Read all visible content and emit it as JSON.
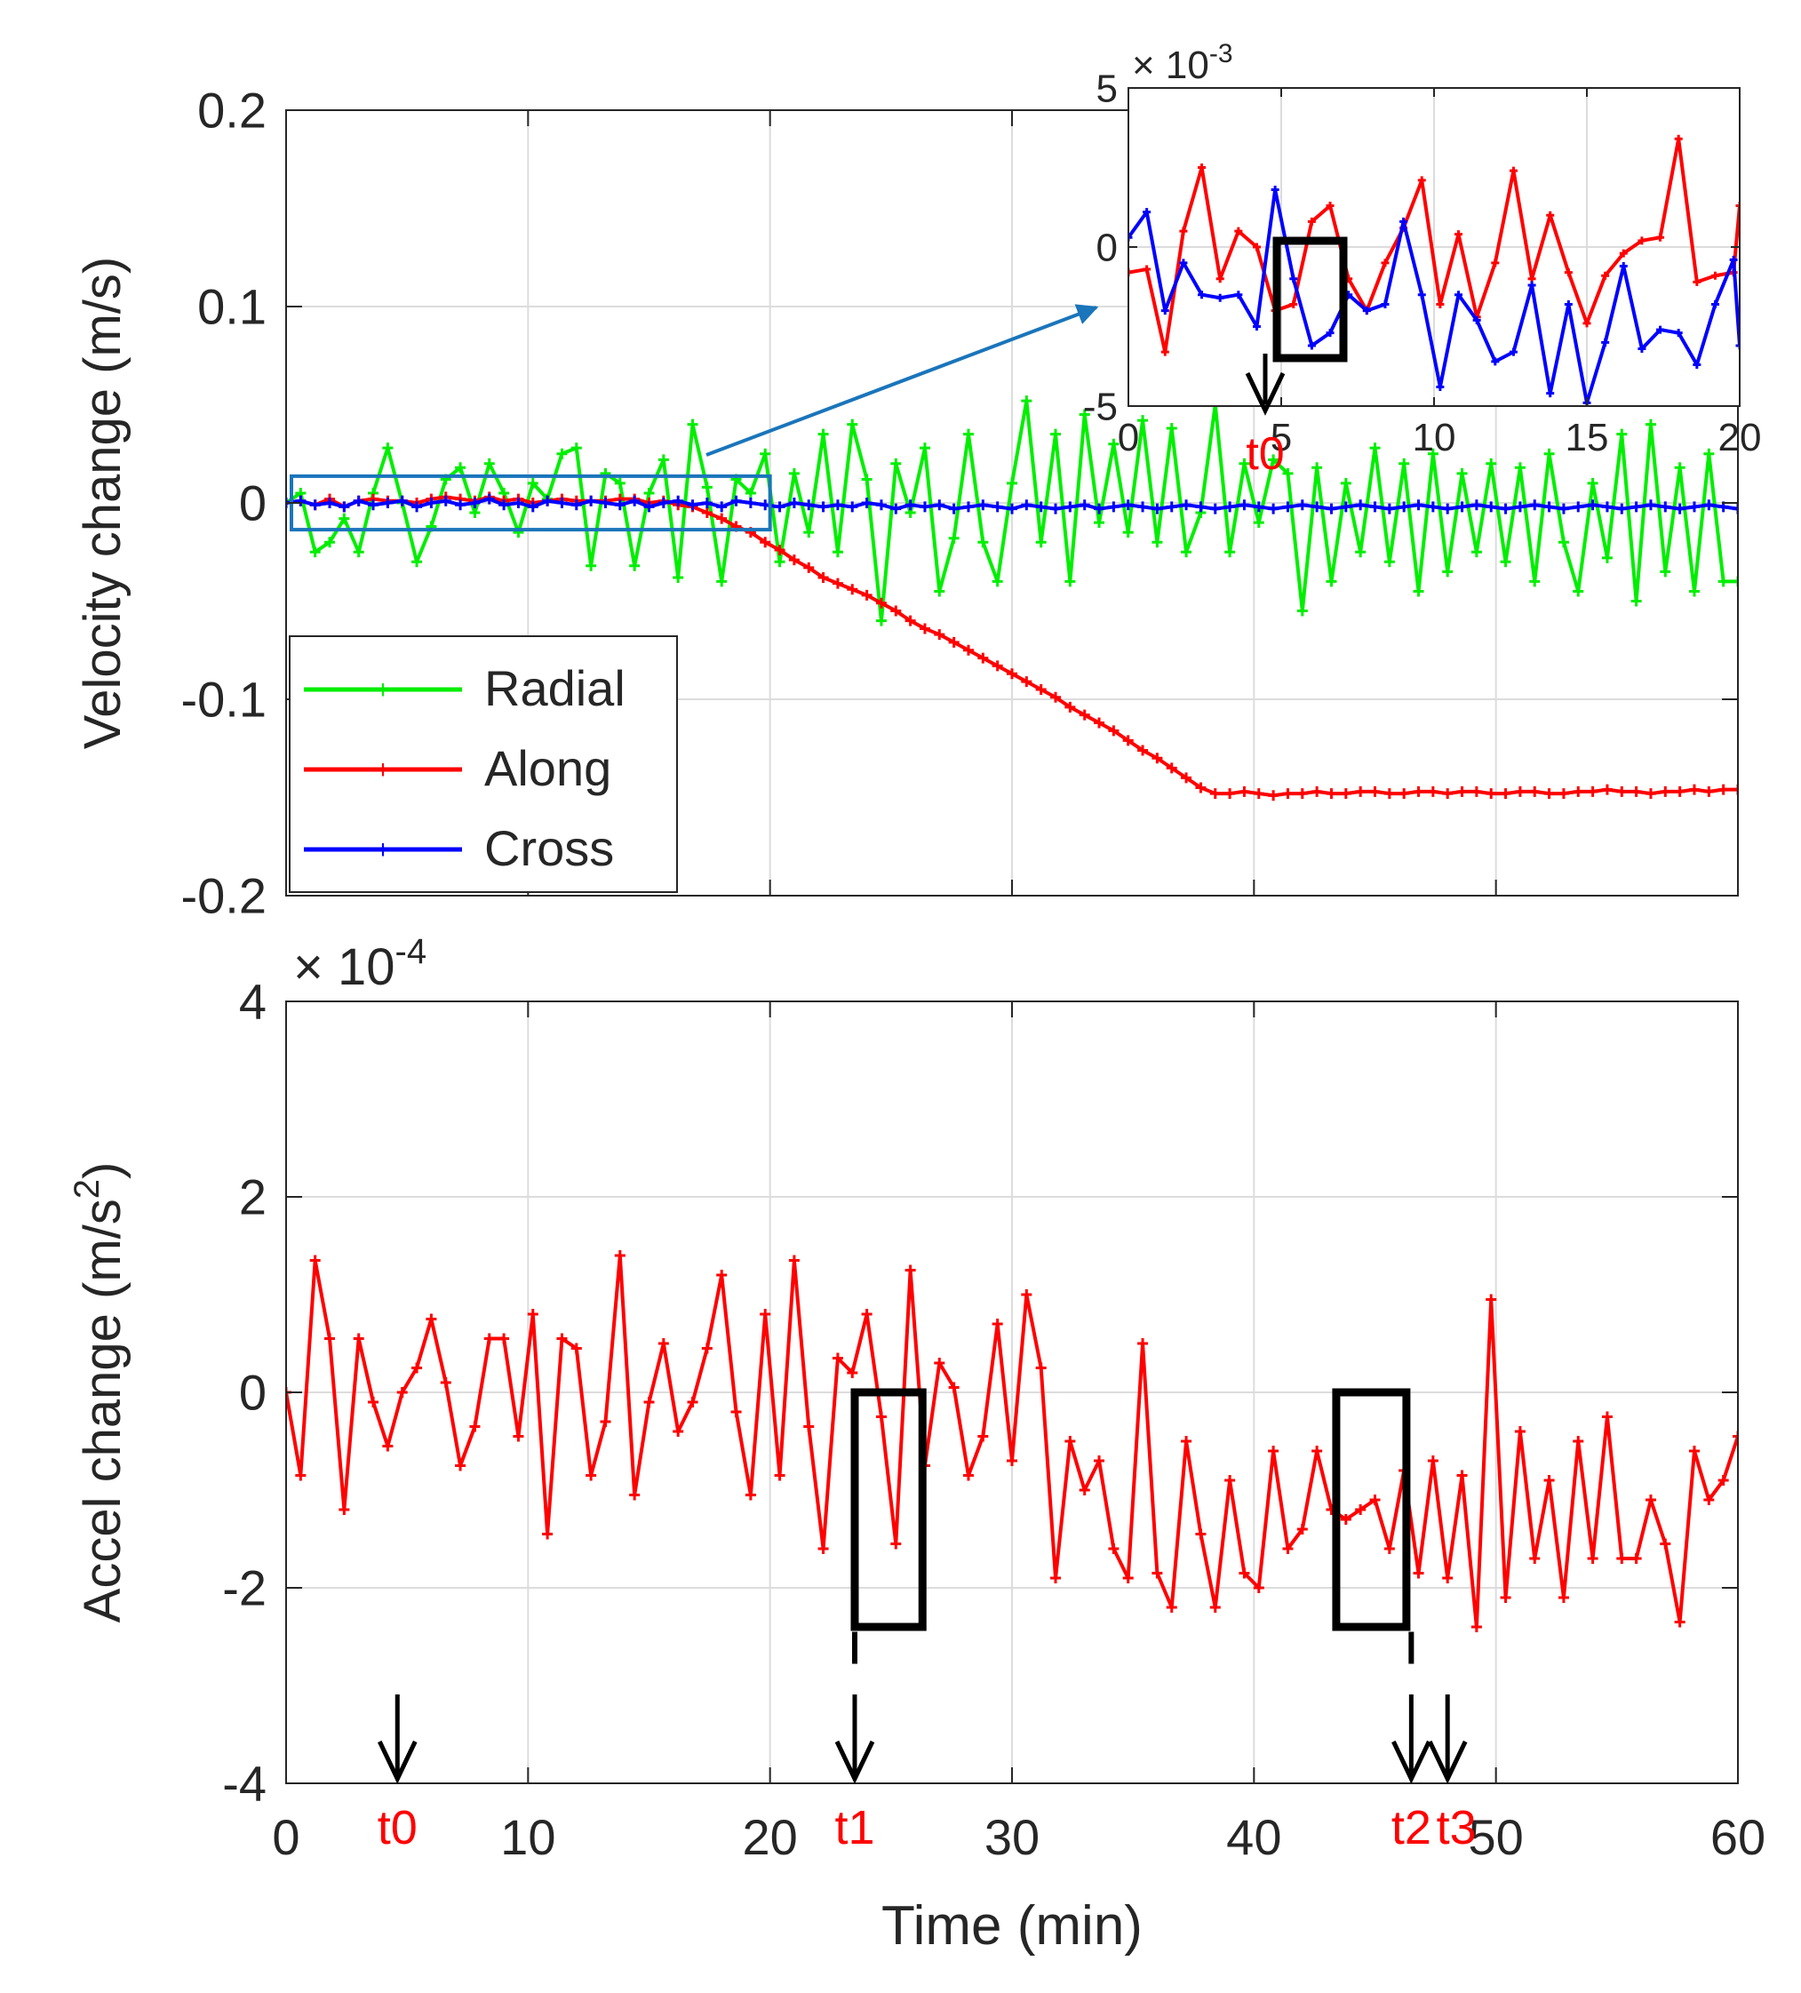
{
  "chart_data": [
    {
      "type": "line",
      "id": "top",
      "ylabel": "Velocity change (m/s)",
      "xlabel": "",
      "xlim": [
        0,
        60
      ],
      "ylim": [
        -0.2,
        0.2
      ],
      "xticks": [
        0,
        10,
        20,
        30,
        40,
        50,
        60
      ],
      "yticks": [
        -0.2,
        -0.1,
        0,
        0.1,
        0.2
      ],
      "ytick_labels": [
        "-0.2",
        "-0.1",
        "0",
        "0.1",
        "0.2"
      ],
      "grid": true,
      "legend": "lower-left",
      "colors": {
        "Radial": "#00ee00",
        "Along": "#ff0000",
        "Cross": "#0000ff",
        "zoom_box": "#1a75bb",
        "arrow": "#1a75bb"
      },
      "x": [
        0,
        0.6,
        1.2,
        1.8,
        2.4,
        3,
        3.6,
        4.2,
        4.8,
        5.4,
        6,
        6.6,
        7.2,
        7.8,
        8.4,
        9,
        9.6,
        10.2,
        10.8,
        11.4,
        12,
        12.6,
        13.2,
        13.8,
        14.4,
        15,
        15.6,
        16.2,
        16.8,
        17.4,
        18,
        18.6,
        19.2,
        19.8,
        20.4,
        21,
        21.6,
        22.2,
        22.8,
        23.4,
        24,
        24.6,
        25.2,
        25.8,
        26.4,
        27,
        27.6,
        28.2,
        28.8,
        29.4,
        30,
        30.6,
        31.2,
        31.8,
        32.4,
        33,
        33.6,
        34.2,
        34.8,
        35.4,
        36,
        36.6,
        37.2,
        37.8,
        38.4,
        39,
        39.6,
        40.2,
        40.8,
        41.4,
        42,
        42.6,
        43.2,
        43.8,
        44.4,
        45,
        45.6,
        46.2,
        46.8,
        47.4,
        48,
        48.6,
        49.2,
        49.8,
        50.4,
        51,
        51.6,
        52.2,
        52.8,
        53.4,
        54,
        54.6,
        55.2,
        55.8,
        56.4,
        57,
        57.6,
        58.2,
        58.8,
        59.4,
        60
      ],
      "series": [
        {
          "name": "Radial",
          "values": [
            0,
            0.005,
            -0.025,
            -0.02,
            -0.008,
            -0.025,
            0.005,
            0.028,
            0,
            -0.03,
            -0.012,
            0.012,
            0.018,
            -0.005,
            0.02,
            0.005,
            -0.015,
            0.01,
            0.002,
            0.025,
            0.028,
            -0.032,
            0.015,
            0.01,
            -0.032,
            0.005,
            0.022,
            -0.038,
            0.04,
            0.008,
            -0.04,
            0.012,
            0.005,
            0.025,
            -0.03,
            0.015,
            -0.015,
            0.035,
            -0.025,
            0.04,
            0.012,
            -0.06,
            0.02,
            -0.005,
            0.028,
            -0.045,
            -0.018,
            0.035,
            -0.02,
            -0.04,
            0.01,
            0.052,
            -0.02,
            0.035,
            -0.04,
            0.045,
            -0.01,
            0.03,
            -0.015,
            0.042,
            -0.02,
            0.038,
            -0.025,
            -0.005,
            0.05,
            -0.025,
            0.02,
            -0.01,
            0.022,
            0.015,
            -0.055,
            0.018,
            -0.04,
            0.01,
            -0.025,
            0.028,
            -0.03,
            0.02,
            -0.045,
            0.025,
            -0.035,
            0.015,
            -0.025,
            0.02,
            -0.03,
            0.018,
            -0.04,
            0.025,
            -0.02,
            -0.045,
            0.01,
            -0.028,
            0.035,
            -0.05,
            0.04,
            -0.035,
            0.018,
            -0.045,
            0.025,
            -0.04,
            -0.04
          ]
        },
        {
          "name": "Along",
          "values": [
            0,
            0.001,
            -0.001,
            0.002,
            -0.002,
            0.001,
            0.002,
            0.001,
            0.001,
            0,
            0.002,
            0.003,
            0.002,
            0.001,
            0.003,
            0.001,
            0.002,
            0,
            0.001,
            0.002,
            0.001,
            0.001,
            0.001,
            0.002,
            0.002,
            0,
            0.001,
            -0.001,
            -0.002,
            -0.005,
            -0.008,
            -0.012,
            -0.015,
            -0.02,
            -0.024,
            -0.029,
            -0.033,
            -0.038,
            -0.041,
            -0.044,
            -0.047,
            -0.051,
            -0.055,
            -0.06,
            -0.064,
            -0.067,
            -0.071,
            -0.075,
            -0.079,
            -0.083,
            -0.087,
            -0.091,
            -0.095,
            -0.099,
            -0.104,
            -0.108,
            -0.112,
            -0.116,
            -0.121,
            -0.126,
            -0.13,
            -0.135,
            -0.14,
            -0.145,
            -0.148,
            -0.148,
            -0.147,
            -0.148,
            -0.149,
            -0.148,
            -0.148,
            -0.147,
            -0.148,
            -0.148,
            -0.147,
            -0.147,
            -0.148,
            -0.148,
            -0.147,
            -0.147,
            -0.148,
            -0.147,
            -0.147,
            -0.148,
            -0.148,
            -0.147,
            -0.147,
            -0.148,
            -0.148,
            -0.147,
            -0.147,
            -0.146,
            -0.147,
            -0.147,
            -0.148,
            -0.147,
            -0.147,
            -0.146,
            -0.147,
            -0.146,
            -0.146
          ]
        },
        {
          "name": "Cross",
          "values": [
            0,
            0.001,
            -0.001,
            0,
            -0.002,
            0.001,
            -0.001,
            0,
            0.001,
            -0.002,
            0,
            0.001,
            -0.001,
            0,
            0.002,
            -0.001,
            0,
            -0.002,
            0.001,
            0,
            -0.001,
            0.001,
            0,
            -0.001,
            0.001,
            -0.002,
            0,
            0.001,
            -0.001,
            0,
            -0.002,
            0.001,
            0,
            -0.001,
            -0.002,
            0,
            -0.001,
            -0.002,
            -0.001,
            -0.002,
            0,
            -0.001,
            -0.003,
            -0.001,
            -0.002,
            -0.001,
            -0.003,
            -0.002,
            -0.001,
            -0.002,
            -0.003,
            -0.001,
            -0.002,
            -0.003,
            -0.002,
            -0.001,
            -0.003,
            -0.002,
            -0.001,
            -0.002,
            -0.003,
            -0.002,
            -0.001,
            -0.002,
            -0.003,
            -0.002,
            -0.001,
            -0.002,
            -0.003,
            -0.002,
            -0.001,
            -0.002,
            -0.003,
            -0.002,
            -0.001,
            -0.002,
            -0.003,
            -0.002,
            -0.001,
            -0.002,
            -0.003,
            -0.002,
            -0.001,
            -0.002,
            -0.003,
            -0.002,
            -0.001,
            -0.002,
            -0.003,
            -0.002,
            -0.001,
            -0.002,
            -0.003,
            -0.002,
            -0.001,
            -0.002,
            -0.003,
            -0.002,
            -0.001,
            -0.002,
            -0.003
          ]
        }
      ],
      "zoom_region": {
        "x": [
          0,
          20
        ],
        "y": [
          -0.01,
          0.01
        ]
      }
    },
    {
      "type": "line",
      "id": "inset",
      "xlim": [
        0,
        20
      ],
      "ylim": [
        -5,
        5
      ],
      "xticks": [
        0,
        5,
        10,
        15,
        20
      ],
      "yticks": [
        -5,
        0,
        5
      ],
      "ytick_labels": [
        "-5",
        "0",
        "5"
      ],
      "exponent_label": "× 10-3",
      "exponent_base": "× 10",
      "exponent_power": "-3",
      "grid": true,
      "x": [
        0,
        0.6,
        1.2,
        1.8,
        2.4,
        3,
        3.6,
        4.2,
        4.8,
        5.4,
        6,
        6.6,
        7.2,
        7.8,
        8.4,
        9,
        9.6,
        10.2,
        10.8,
        11.4,
        12,
        12.6,
        13.2,
        13.8,
        14.4,
        15,
        15.6,
        16.2,
        16.8,
        17.4,
        18,
        18.6,
        19.2,
        19.8,
        20
      ],
      "series": [
        {
          "name": "Along",
          "values": [
            -0.8,
            -0.7,
            -3.3,
            0.5,
            2.5,
            -1,
            0.5,
            0,
            -2,
            -1.8,
            0.8,
            1.3,
            -1,
            -2,
            -0.5,
            0.6,
            2.1,
            -1.8,
            0.4,
            -2.2,
            -0.5,
            2.4,
            -1,
            1,
            -0.8,
            -2.4,
            -0.9,
            -0.2,
            0.2,
            0.3,
            3.4,
            -1.1,
            -0.9,
            -0.8,
            1.3
          ]
        },
        {
          "name": "Cross",
          "values": [
            0.3,
            1.1,
            -2,
            -0.5,
            -1.5,
            -1.6,
            -1.5,
            -2.5,
            1.8,
            -1,
            -3.1,
            -2.7,
            -1.5,
            -2,
            -1.8,
            0.8,
            -1.5,
            -4.4,
            -1.5,
            -2.3,
            -3.6,
            -3.3,
            -1.2,
            -4.6,
            -1.8,
            -4.9,
            -3,
            -0.6,
            -3.2,
            -2.6,
            -2.7,
            -3.7,
            -1.8,
            -0.4,
            -3.1
          ]
        }
      ],
      "annotations": [
        {
          "label": "t0",
          "x": 5
        }
      ]
    },
    {
      "type": "line",
      "id": "bottom",
      "xlabel": "Time (min)",
      "ylabel": "Accel change (m/s2)",
      "ylabel_base": "Accel change (m/s",
      "ylabel_power": "2",
      "ylabel_close": ")",
      "exponent_label": "× 10-4",
      "exponent_base": "× 10",
      "exponent_power": "-4",
      "xlim": [
        0,
        60
      ],
      "ylim": [
        -4,
        4
      ],
      "xticks": [
        0,
        10,
        20,
        30,
        40,
        50,
        60
      ],
      "yticks": [
        -4,
        -2,
        0,
        2,
        4
      ],
      "ytick_labels": [
        "-4",
        "-2",
        "0",
        "2",
        "4"
      ],
      "grid": true,
      "x": [
        0,
        0.6,
        1.2,
        1.8,
        2.4,
        3,
        3.6,
        4.2,
        4.8,
        5.4,
        6,
        6.6,
        7.2,
        7.8,
        8.4,
        9,
        9.6,
        10.2,
        10.8,
        11.4,
        12,
        12.6,
        13.2,
        13.8,
        14.4,
        15,
        15.6,
        16.2,
        16.8,
        17.4,
        18,
        18.6,
        19.2,
        19.8,
        20.4,
        21,
        21.6,
        22.2,
        22.8,
        23.4,
        24,
        24.6,
        25.2,
        25.8,
        26.4,
        27,
        27.6,
        28.2,
        28.8,
        29.4,
        30,
        30.6,
        31.2,
        31.8,
        32.4,
        33,
        33.6,
        34.2,
        34.8,
        35.4,
        36,
        36.6,
        37.2,
        37.8,
        38.4,
        39,
        39.6,
        40.2,
        40.8,
        41.4,
        42,
        42.6,
        43.2,
        43.8,
        44.4,
        45,
        45.6,
        46.2,
        46.8,
        47.4,
        48,
        48.6,
        49.2,
        49.8,
        50.4,
        51,
        51.6,
        52.2,
        52.8,
        53.4,
        54,
        54.6,
        55.2,
        55.8,
        56.4,
        57,
        57.6,
        58.2,
        58.8,
        59.4,
        60
      ],
      "series": [
        {
          "name": "Along",
          "values": [
            0,
            -0.85,
            1.35,
            0.55,
            -1.2,
            0.55,
            -0.1,
            -0.55,
            0,
            0.25,
            0.75,
            0.1,
            -0.75,
            -0.35,
            0.55,
            0.55,
            -0.45,
            0.8,
            -1.45,
            0.55,
            0.45,
            -0.85,
            -0.3,
            1.4,
            -1.05,
            -0.1,
            0.5,
            -0.4,
            -0.1,
            0.45,
            1.2,
            -0.2,
            -1.05,
            0.8,
            -0.85,
            1.35,
            -0.35,
            -1.6,
            0.35,
            0.2,
            0.8,
            -0.25,
            -1.55,
            1.25,
            -0.75,
            0.3,
            0.05,
            -0.85,
            -0.45,
            0.7,
            -0.7,
            1.0,
            0.25,
            -1.9,
            -0.5,
            -1.0,
            -0.7,
            -1.6,
            -1.9,
            0.5,
            -1.85,
            -2.2,
            -0.5,
            -1.45,
            -2.2,
            -0.9,
            -1.85,
            -2.0,
            -0.6,
            -1.6,
            -1.4,
            -0.6,
            -1.2,
            -1.3,
            -1.2,
            -1.1,
            -1.6,
            -0.8,
            -1.85,
            -0.7,
            -1.9,
            -0.85,
            -2.4,
            0.95,
            -2.1,
            -0.4,
            -1.7,
            -0.9,
            -2.1,
            -0.5,
            -1.7,
            -0.25,
            -1.7,
            -1.7,
            -1.1,
            -1.55,
            -2.35,
            -0.6,
            -1.1,
            -0.9,
            -0.45
          ]
        }
      ],
      "annotations": [
        {
          "label": "t0",
          "x": 4.6
        },
        {
          "label": "t1",
          "x": 23.5
        },
        {
          "label": "t2",
          "x": 46.5
        },
        {
          "label": "t3",
          "x": 48.0
        }
      ],
      "highlight_boxes": [
        {
          "x": [
            23.5,
            26.3
          ],
          "y": [
            -2.4,
            0
          ]
        },
        {
          "x": [
            43.4,
            46.3
          ],
          "y": [
            -2.4,
            0
          ]
        }
      ]
    }
  ]
}
